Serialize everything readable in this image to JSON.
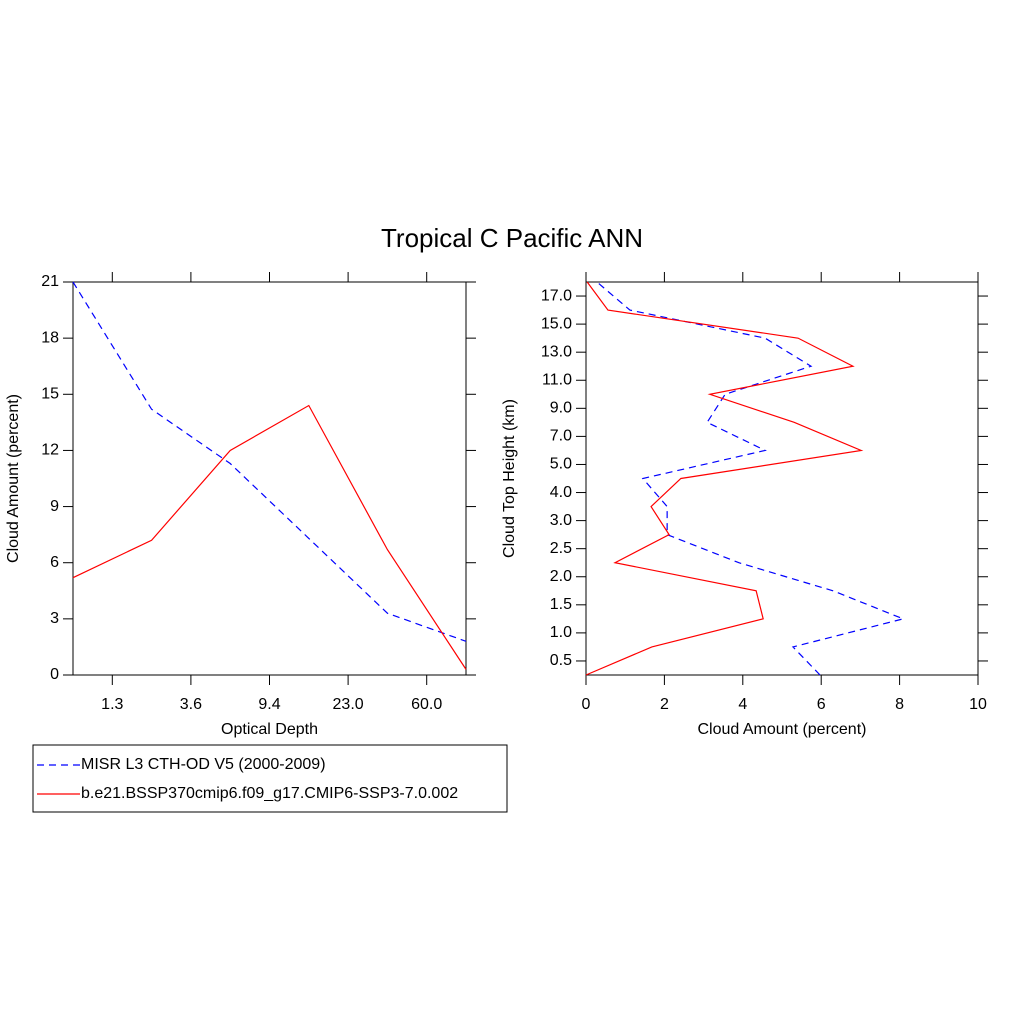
{
  "title": "Tropical C Pacific ANN",
  "chart_data": [
    {
      "type": "line",
      "orientation": "vertical",
      "xlabel": "Optical Depth",
      "ylabel": "Cloud Amount (percent)",
      "x": [
        0,
        1,
        2,
        3,
        4,
        5
      ],
      "xlim": [
        0,
        5
      ],
      "xticks": [
        {
          "value": 0.5,
          "label": "1.3"
        },
        {
          "value": 1.5,
          "label": "3.6"
        },
        {
          "value": 2.5,
          "label": "9.4"
        },
        {
          "value": 3.5,
          "label": "23.0"
        },
        {
          "value": 4.5,
          "label": "60.0"
        }
      ],
      "ylim": [
        0,
        21
      ],
      "yticks": [
        0,
        3,
        6,
        9,
        12,
        15,
        18,
        21
      ],
      "series": [
        {
          "name": "MISR L3 CTH-OD V5 (2000-2009)",
          "color": "#0000ff",
          "style": "dashed",
          "values": [
            21.0,
            14.2,
            11.3,
            7.3,
            3.3,
            1.8
          ]
        },
        {
          "name": "b.e21.BSSP370cmip6.f09_g17.CMIP6-SSP3-7.0.002",
          "color": "#ff0000",
          "style": "solid",
          "values": [
            5.2,
            7.2,
            12.0,
            14.4,
            6.7,
            0.3
          ]
        }
      ]
    },
    {
      "type": "line",
      "orientation": "horizontal",
      "xlabel": "Cloud Amount (percent)",
      "ylabel": "Cloud Top Height (km)",
      "y": [
        0,
        1,
        2,
        3,
        4,
        5,
        6,
        7,
        8,
        9,
        10,
        11,
        12,
        13,
        14
      ],
      "ylim": [
        0,
        14
      ],
      "yticks": [
        {
          "value": 0.5,
          "label": "0.5"
        },
        {
          "value": 1.5,
          "label": "1.0"
        },
        {
          "value": 2.5,
          "label": "1.5"
        },
        {
          "value": 3.5,
          "label": "2.0"
        },
        {
          "value": 4.5,
          "label": "2.5"
        },
        {
          "value": 5.5,
          "label": "3.0"
        },
        {
          "value": 6.5,
          "label": "4.0"
        },
        {
          "value": 7.5,
          "label": "5.0"
        },
        {
          "value": 8.5,
          "label": "7.0"
        },
        {
          "value": 9.5,
          "label": "9.0"
        },
        {
          "value": 10.5,
          "label": "11.0"
        },
        {
          "value": 11.5,
          "label": "13.0"
        },
        {
          "value": 12.5,
          "label": "15.0"
        },
        {
          "value": 13.5,
          "label": "17.0"
        }
      ],
      "xlim": [
        0,
        10
      ],
      "xticks": [
        0,
        2,
        4,
        6,
        8,
        10
      ],
      "series": [
        {
          "color": "#0000ff",
          "style": "dashed",
          "values": [
            5.97,
            5.28,
            8.09,
            6.3,
            3.9,
            2.07,
            2.07,
            1.45,
            4.57,
            3.09,
            3.55,
            5.74,
            4.57,
            1.12,
            0.28
          ]
        },
        {
          "color": "#ff0000",
          "style": "solid",
          "values": [
            0,
            1.68,
            4.52,
            4.34,
            0.74,
            2.12,
            1.66,
            2.42,
            7.02,
            5.31,
            3.16,
            6.81,
            5.41,
            0.56,
            0.03
          ]
        }
      ]
    }
  ]
}
